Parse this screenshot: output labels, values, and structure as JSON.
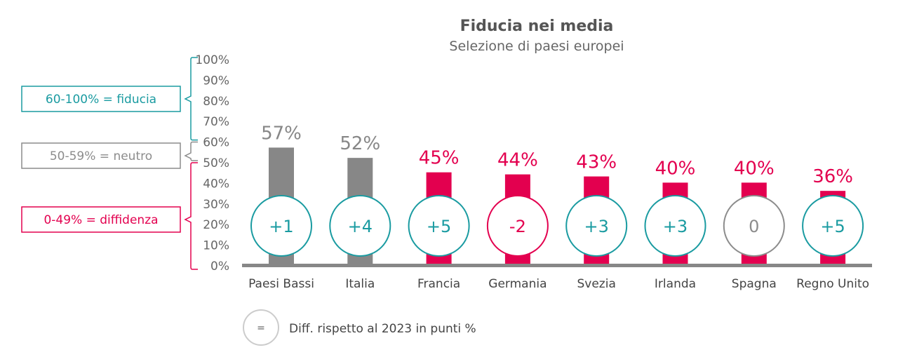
{
  "chart_data": {
    "type": "bar",
    "title": "Fiducia nei media",
    "subtitle": "Selezione di paesi europei",
    "categories": [
      "Paesi Bassi",
      "Italia",
      "Francia",
      "Germania",
      "Svezia",
      "Irlanda",
      "Spagna",
      "Regno Unito"
    ],
    "values": [
      57,
      52,
      45,
      44,
      43,
      40,
      40,
      36
    ],
    "value_labels": [
      "57%",
      "52%",
      "45%",
      "44%",
      "43%",
      "40%",
      "40%",
      "36%"
    ],
    "diff_vs_2023": [
      "+1",
      "+4",
      "+5",
      "-2",
      "+3",
      "+3",
      "0",
      "+5"
    ],
    "ylim": [
      0,
      100
    ],
    "yticks": [
      "0%",
      "10%",
      "20%",
      "30%",
      "40%",
      "50%",
      "60%",
      "70%",
      "80%",
      "90%",
      "100%"
    ],
    "bands": [
      {
        "label": "60-100% = fiducia",
        "range": [
          60,
          100
        ],
        "color": "#1a9ba1"
      },
      {
        "label": "50-59% = neutro",
        "range": [
          50,
          59
        ],
        "color": "#8c8c8c"
      },
      {
        "label": "0-49% = diffidenza",
        "range": [
          0,
          49
        ],
        "color": "#e3004f"
      }
    ],
    "legend": {
      "symbol": "=",
      "label": "Diff. rispetto al 2023 in punti %"
    },
    "colors": {
      "neutral": "#878787",
      "distrust": "#e3004f",
      "up": "#1a9ba1",
      "down": "#e3004f",
      "zero": "#8c8c8c",
      "axis": "#878787"
    }
  }
}
